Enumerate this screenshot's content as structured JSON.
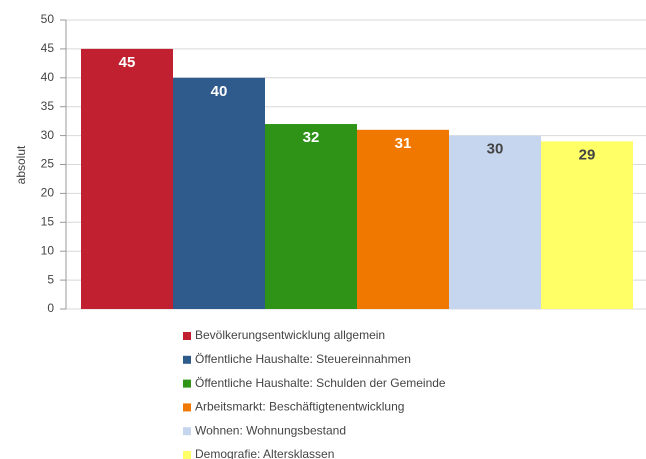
{
  "chart_data": {
    "type": "bar",
    "y_label": "absolut",
    "categories": [
      "Bevölkerungsentwicklung allgemein",
      "Öffentliche Haushalte: Steuereinnahmen",
      "Öffentliche Haushalte: Schulden der Gemeinde",
      "Arbeitsmarkt: Beschäftigtenentwicklung",
      "Wohnen: Wohnungsbestand",
      "Demografie: Altersklassen"
    ],
    "values": [
      45,
      40,
      32,
      31,
      30,
      29
    ],
    "colors": [
      "#c0202f",
      "#2e5b8c",
      "#2f9317",
      "#f07800",
      "#c6d6ee",
      "#ffff66"
    ],
    "ylim": [
      0,
      50
    ],
    "yticks": [
      0,
      5,
      10,
      15,
      20,
      25,
      30,
      35,
      40,
      45,
      50
    ],
    "grid": true,
    "legend": "bottom"
  }
}
